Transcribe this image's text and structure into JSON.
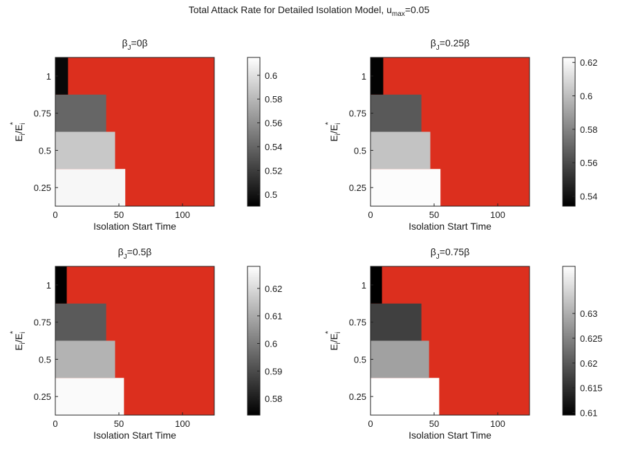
{
  "figure": {
    "title_main": "Total Attack Rate for Detailed Isolation Model, u",
    "title_sub": "max",
    "title_tail": "=0.05"
  },
  "chart_data": [
    {
      "type": "heatmap",
      "title": {
        "prefix": "β",
        "sub": "J",
        "tail": "=0β"
      },
      "xlabel": "Isolation Start Time",
      "ylabel": "E_i/E_i^*",
      "xlim": [
        0,
        125
      ],
      "xticks": [
        0,
        50,
        100
      ],
      "yticks": [
        0.25,
        0.5,
        0.75,
        1
      ],
      "rows": [
        {
          "y": 0.25,
          "colored_until": 55,
          "value": 0.611
        },
        {
          "y": 0.5,
          "colored_until": 47,
          "value": 0.588
        },
        {
          "y": 0.75,
          "colored_until": 40,
          "value": 0.54
        },
        {
          "y": 1,
          "colored_until": 10,
          "value": 0.494
        }
      ],
      "fill_color": "#dc2f1e",
      "colorbar": {
        "min": 0.49,
        "max": 0.615,
        "ticks": [
          0.5,
          0.52,
          0.54,
          0.56,
          0.58,
          0.6
        ],
        "tick_labels": [
          "0.5",
          "0.52",
          "0.54",
          "0.56",
          "0.58",
          "0.6"
        ]
      }
    },
    {
      "type": "heatmap",
      "title": {
        "prefix": "β",
        "sub": "J",
        "tail": "=0.25β"
      },
      "xlabel": "Isolation Start Time",
      "ylabel": "E_i/E_i^*",
      "xlim": [
        0,
        125
      ],
      "xticks": [
        0,
        50,
        100
      ],
      "yticks": [
        0.25,
        0.5,
        0.75,
        1
      ],
      "rows": [
        {
          "y": 0.25,
          "colored_until": 55,
          "value": 0.622
        },
        {
          "y": 0.5,
          "colored_until": 47,
          "value": 0.602
        },
        {
          "y": 0.75,
          "colored_until": 40,
          "value": 0.565
        },
        {
          "y": 1,
          "colored_until": 10,
          "value": 0.535
        }
      ],
      "fill_color": "#dc2f1e",
      "colorbar": {
        "min": 0.534,
        "max": 0.623,
        "ticks": [
          0.54,
          0.56,
          0.58,
          0.6,
          0.62
        ],
        "tick_labels": [
          "0.54",
          "0.56",
          "0.58",
          "0.6",
          "0.62"
        ]
      }
    },
    {
      "type": "heatmap",
      "title": {
        "prefix": "β",
        "sub": "J",
        "tail": "=0.5β"
      },
      "xlabel": "Isolation Start Time",
      "ylabel": "E_i/E_i^*",
      "xlim": [
        0,
        125
      ],
      "xticks": [
        0,
        50,
        100
      ],
      "yticks": [
        0.25,
        0.5,
        0.75,
        1
      ],
      "rows": [
        {
          "y": 0.25,
          "colored_until": 54,
          "value": 0.627
        },
        {
          "y": 0.5,
          "colored_until": 47,
          "value": 0.612
        },
        {
          "y": 0.75,
          "colored_until": 40,
          "value": 0.593
        },
        {
          "y": 1,
          "colored_until": 9,
          "value": 0.574
        }
      ],
      "fill_color": "#dc2f1e",
      "colorbar": {
        "min": 0.574,
        "max": 0.628,
        "ticks": [
          0.58,
          0.59,
          0.6,
          0.61,
          0.62
        ],
        "tick_labels": [
          "0.58",
          "0.59",
          "0.6",
          "0.61",
          "0.62"
        ]
      }
    },
    {
      "type": "heatmap",
      "title": {
        "prefix": "β",
        "sub": "J",
        "tail": "=0.75β"
      },
      "xlabel": "Isolation Start Time",
      "ylabel": "E_i/E_i^*",
      "xlim": [
        0,
        125
      ],
      "xticks": [
        0,
        50,
        100
      ],
      "yticks": [
        0.25,
        0.5,
        0.75,
        1
      ],
      "rows": [
        {
          "y": 0.25,
          "colored_until": 54,
          "value": 0.6395
        },
        {
          "y": 0.5,
          "colored_until": 46,
          "value": 0.6285
        },
        {
          "y": 0.75,
          "colored_until": 40,
          "value": 0.617
        },
        {
          "y": 1,
          "colored_until": 9,
          "value": 0.6095
        }
      ],
      "fill_color": "#dc2f1e",
      "colorbar": {
        "min": 0.6095,
        "max": 0.6395,
        "ticks": [
          0.61,
          0.615,
          0.62,
          0.625,
          0.63
        ],
        "tick_labels": [
          "0.61",
          "0.615",
          "0.62",
          "0.625",
          "0.63"
        ]
      }
    }
  ]
}
